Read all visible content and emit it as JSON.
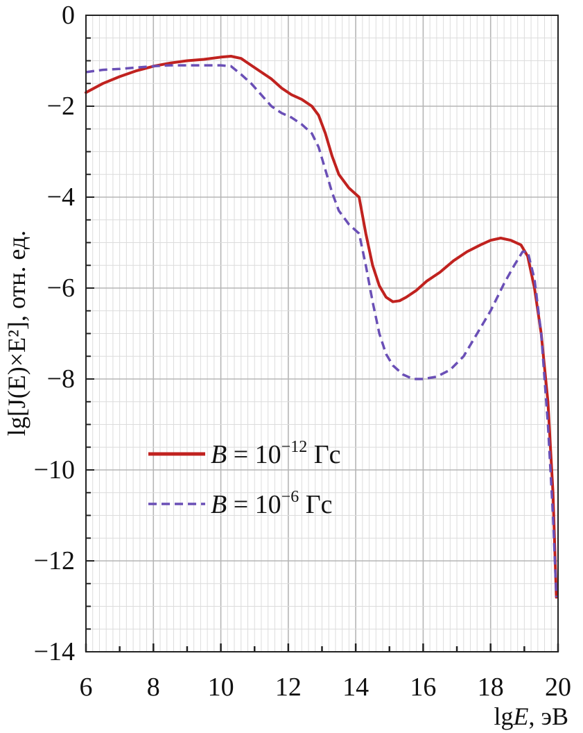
{
  "chart_data": {
    "type": "line",
    "xlabel": "lgE, эВ",
    "ylabel": "lg[J(E)×E²], отн. ед.",
    "xlim": [
      6,
      20
    ],
    "ylim": [
      -14,
      0
    ],
    "x_ticks": [
      "6",
      "8",
      "10",
      "12",
      "14",
      "16",
      "18",
      "20"
    ],
    "y_ticks": [
      "0",
      "−2",
      "−4",
      "−6",
      "−8",
      "−10",
      "−12",
      "−14"
    ],
    "grid": true,
    "legend_position": "center-left",
    "series": [
      {
        "name": "B = 10⁻¹² Гс",
        "legend_prefix": "B",
        "legend_rest": " = 10",
        "legend_exp": "−12",
        "legend_unit": " Гс",
        "color": "#c0221f",
        "style": "solid",
        "x": [
          6.0,
          6.5,
          7.0,
          7.5,
          8.0,
          8.5,
          9.0,
          9.5,
          10.0,
          10.3,
          10.6,
          10.9,
          11.2,
          11.5,
          11.8,
          12.1,
          12.4,
          12.7,
          12.9,
          13.1,
          13.3,
          13.5,
          13.8,
          14.1,
          14.3,
          14.5,
          14.7,
          14.9,
          15.1,
          15.3,
          15.5,
          15.8,
          16.1,
          16.5,
          16.9,
          17.3,
          17.7,
          18.0,
          18.3,
          18.6,
          18.9,
          19.1,
          19.3,
          19.5,
          19.7,
          19.85,
          19.95
        ],
        "y": [
          -1.7,
          -1.5,
          -1.35,
          -1.22,
          -1.12,
          -1.05,
          -1.0,
          -0.97,
          -0.92,
          -0.9,
          -0.95,
          -1.1,
          -1.25,
          -1.4,
          -1.6,
          -1.75,
          -1.85,
          -2.0,
          -2.2,
          -2.6,
          -3.1,
          -3.5,
          -3.8,
          -4.0,
          -4.8,
          -5.5,
          -5.95,
          -6.2,
          -6.3,
          -6.28,
          -6.2,
          -6.05,
          -5.85,
          -5.65,
          -5.4,
          -5.2,
          -5.05,
          -4.95,
          -4.9,
          -4.95,
          -5.05,
          -5.3,
          -6.0,
          -7.0,
          -8.5,
          -10.5,
          -12.8
        ]
      },
      {
        "name": "B = 10⁻⁶ Гс",
        "legend_prefix": "B",
        "legend_rest": " = 10",
        "legend_exp": "−6",
        "legend_unit": " Гс",
        "color": "#6a4fb6",
        "style": "dashed",
        "x": [
          6.0,
          6.5,
          7.0,
          7.5,
          8.0,
          8.5,
          9.0,
          9.5,
          10.0,
          10.3,
          10.6,
          10.9,
          11.2,
          11.5,
          11.8,
          12.1,
          12.4,
          12.7,
          12.9,
          13.1,
          13.3,
          13.5,
          13.8,
          14.1,
          14.3,
          14.5,
          14.7,
          14.9,
          15.1,
          15.4,
          15.7,
          16.0,
          16.4,
          16.8,
          17.2,
          17.6,
          18.0,
          18.4,
          18.7,
          18.95,
          19.1,
          19.3,
          19.5,
          19.7,
          19.85,
          19.95
        ],
        "y": [
          -1.25,
          -1.2,
          -1.18,
          -1.15,
          -1.12,
          -1.1,
          -1.1,
          -1.1,
          -1.1,
          -1.12,
          -1.3,
          -1.5,
          -1.75,
          -2.0,
          -2.15,
          -2.25,
          -2.4,
          -2.6,
          -2.9,
          -3.4,
          -3.9,
          -4.3,
          -4.6,
          -4.8,
          -5.5,
          -6.3,
          -7.0,
          -7.45,
          -7.7,
          -7.9,
          -8.0,
          -8.0,
          -7.95,
          -7.8,
          -7.5,
          -7.0,
          -6.5,
          -5.9,
          -5.5,
          -5.2,
          -5.2,
          -5.8,
          -7.0,
          -9.0,
          -11.0,
          -12.8
        ]
      }
    ]
  }
}
